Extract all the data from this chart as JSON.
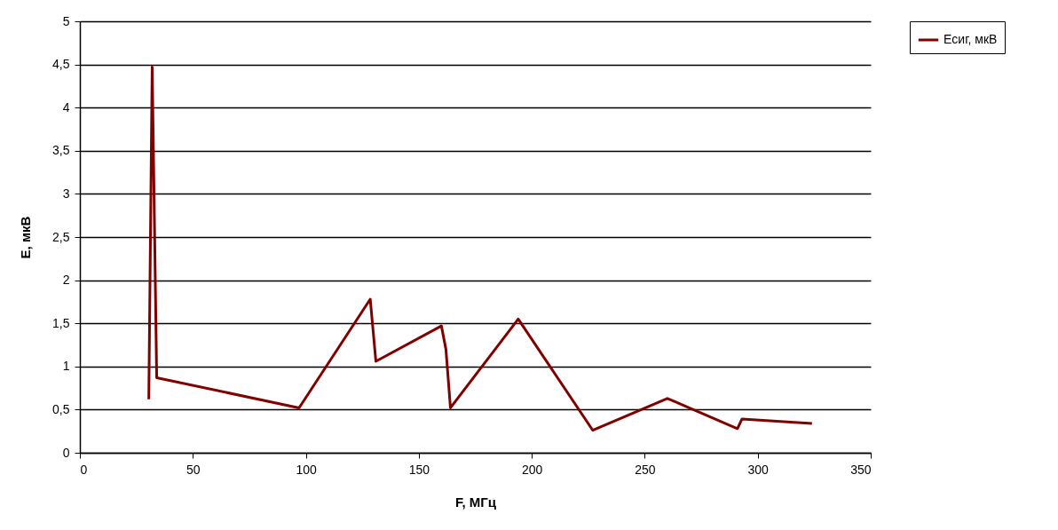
{
  "chart_data": {
    "type": "line",
    "xlabel": "F, МГц",
    "ylabel": "E, мкВ",
    "xlim": [
      0,
      350
    ],
    "xticks": [
      0,
      50,
      100,
      150,
      200,
      250,
      300,
      350
    ],
    "ylim": [
      0,
      5
    ],
    "yticks": [
      0,
      {
        "value": 0.5,
        "label": "0,5"
      },
      1,
      {
        "value": 1.5,
        "label": "1,5"
      },
      2,
      {
        "value": 2.5,
        "label": "2,5"
      },
      3,
      {
        "value": 3.5,
        "label": "3,5"
      },
      4,
      {
        "value": 4.5,
        "label": "4,5"
      },
      5
    ],
    "grid": "y",
    "legend": "right",
    "marker": "none",
    "line_style": "solid",
    "series": [
      {
        "name": "Eсиг, мкВ",
        "color": "#800000",
        "x": [
          30.5,
          32,
          34,
          97,
          128.5,
          131,
          160,
          162,
          164,
          194,
          227,
          260,
          291,
          293,
          324
        ],
        "values": [
          0.62,
          4.47,
          0.87,
          0.52,
          1.78,
          1.06,
          1.47,
          1.2,
          0.52,
          1.55,
          0.26,
          0.63,
          0.28,
          0.39,
          0.34
        ]
      }
    ]
  }
}
